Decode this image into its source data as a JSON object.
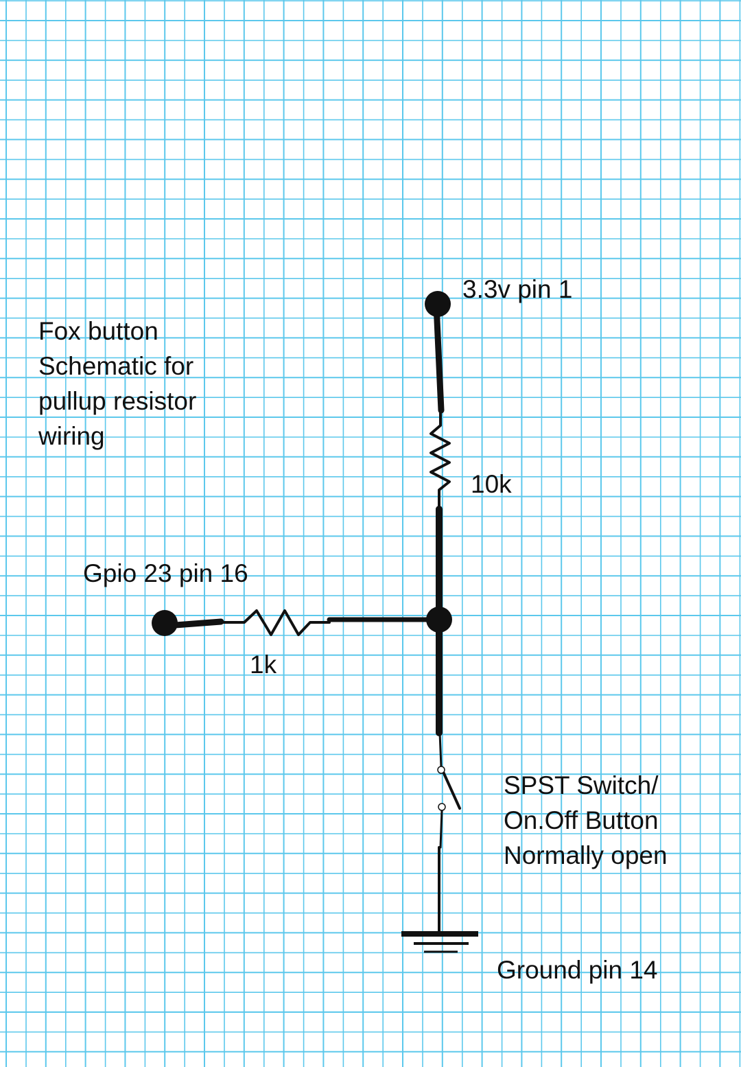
{
  "diagram": {
    "note": {
      "lines": [
        "Fox button",
        "Schematic for",
        "pullup resistor",
        "wiring"
      ]
    },
    "labels": {
      "power": "3.3v pin 1",
      "pullup_resistor": "10k",
      "gpio": "Gpio 23 pin 16",
      "series_resistor": "1k",
      "switch": {
        "lines": [
          "SPST Switch/",
          "On.Off Button",
          "Normally open"
        ]
      },
      "ground": "Ground pin 14"
    },
    "colors": {
      "grid_line": "#5cc8ec",
      "wire": "#111111",
      "background": "#ffffff"
    }
  }
}
